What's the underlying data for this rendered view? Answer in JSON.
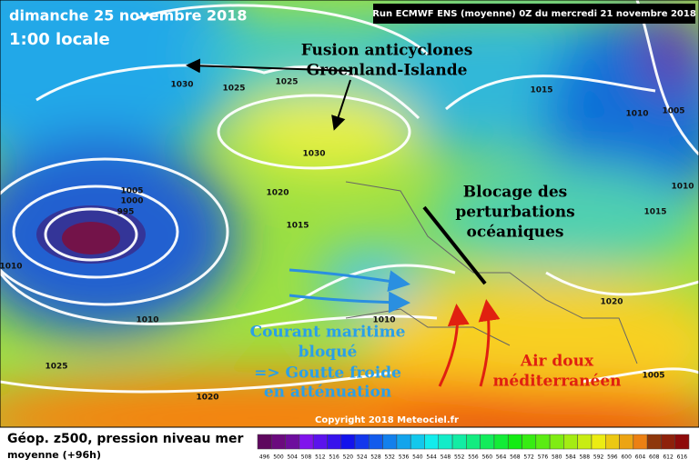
{
  "header": {
    "date": "dimanche 25 novembre 2018",
    "time": "1:00 locale",
    "run": "Run ECMWF ENS (moyenne) 0Z du mercredi 21 novembre 2018"
  },
  "annotations": [
    {
      "lines": [
        "Fusion anticyclones",
        "Groenland-Islande"
      ]
    },
    {
      "lines": [
        "Blocage des",
        "perturbations",
        "océaniques"
      ]
    },
    {
      "lines": [
        "Courant maritime",
        "bloqué",
        "=> Goutte froide",
        "en atténuation"
      ]
    },
    {
      "lines": [
        "Air doux",
        "méditerranéen"
      ]
    }
  ],
  "isobar_labels": [
    "1030",
    "1025",
    "1025",
    "1030",
    "1015",
    "1010",
    "1005",
    "1005",
    "1000",
    "995",
    "1010",
    "1020",
    "1015",
    "1010",
    "1010",
    "1015",
    "1020",
    "1025",
    "1020",
    "1010",
    "1005"
  ],
  "copyright": "Copyright 2018 Meteociel.fr",
  "legend": {
    "title": "Géop. z500, pression niveau mer",
    "subtitle": "moyenne  (+96h)",
    "scale": [
      496,
      500,
      504,
      508,
      512,
      516,
      520,
      524,
      528,
      532,
      536,
      540,
      544,
      548,
      552,
      556,
      560,
      564,
      568,
      572,
      576,
      580,
      584,
      588,
      592,
      596,
      600,
      604,
      608,
      612,
      616
    ]
  }
}
